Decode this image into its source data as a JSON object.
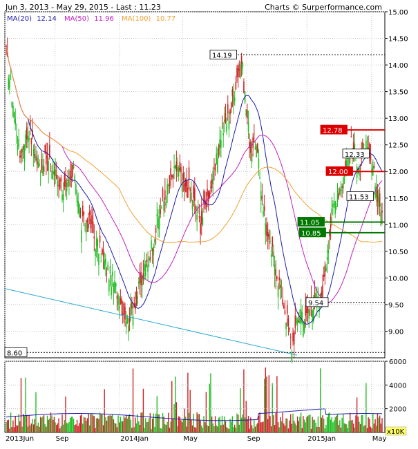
{
  "header": {
    "left": "Jun 3, 2013 - May 29, 2015 - Last : 11.23",
    "right": "Charts © Surperformance.com"
  },
  "legend": [
    {
      "label": "MA(20)",
      "value": "12.14",
      "color": "#1a1aa8"
    },
    {
      "label": "MA(50)",
      "value": "11.96",
      "color": "#c020c0"
    },
    {
      "label": "MA(100)",
      "value": "10.77",
      "color": "#f0a030"
    }
  ],
  "chart_data": {
    "type": "candlestick",
    "price_ylim": [
      8.5,
      15.0
    ],
    "price_ticks": [
      "15.00",
      "14.50",
      "14.00",
      "13.50",
      "13.00",
      "12.50",
      "12.00",
      "11.50",
      "11.00",
      "10.50",
      "10.00",
      "9.50",
      "9.00"
    ],
    "x_labels": [
      "2013Jun",
      "Sep",
      "2014Jan",
      "May",
      "Sep",
      "2015Jan",
      "May"
    ],
    "price_anchors": [
      [
        0,
        14.2
      ],
      [
        4,
        13.6
      ],
      [
        12,
        12.3
      ],
      [
        20,
        12.8
      ],
      [
        28,
        12.1
      ],
      [
        36,
        12.2
      ],
      [
        44,
        11.9
      ],
      [
        52,
        11.6
      ],
      [
        60,
        12.0
      ],
      [
        66,
        11.0
      ],
      [
        72,
        11.1
      ],
      [
        78,
        10.7
      ],
      [
        86,
        10.3
      ],
      [
        94,
        9.9
      ],
      [
        100,
        9.6
      ],
      [
        106,
        9.2
      ],
      [
        112,
        9.5
      ],
      [
        118,
        9.9
      ],
      [
        126,
        10.5
      ],
      [
        134,
        11.2
      ],
      [
        142,
        11.7
      ],
      [
        150,
        12.1
      ],
      [
        156,
        11.6
      ],
      [
        160,
        11.7
      ],
      [
        166,
        11.3
      ],
      [
        170,
        11.0
      ],
      [
        176,
        11.5
      ],
      [
        182,
        11.9
      ],
      [
        188,
        12.7
      ],
      [
        194,
        13.0
      ],
      [
        198,
        13.3
      ],
      [
        202,
        13.8
      ],
      [
        206,
        14.1
      ],
      [
        210,
        13.2
      ],
      [
        214,
        12.4
      ],
      [
        218,
        12.6
      ],
      [
        222,
        11.9
      ],
      [
        226,
        11.2
      ],
      [
        230,
        10.6
      ],
      [
        234,
        10.4
      ],
      [
        238,
        10.0
      ],
      [
        242,
        9.6
      ],
      [
        246,
        9.2
      ],
      [
        250,
        8.7
      ],
      [
        254,
        9.1
      ],
      [
        258,
        9.4
      ],
      [
        262,
        9.2
      ],
      [
        266,
        9.5
      ],
      [
        270,
        9.6
      ],
      [
        274,
        9.5
      ],
      [
        278,
        9.9
      ],
      [
        282,
        10.7
      ],
      [
        286,
        11.3
      ],
      [
        290,
        11.6
      ],
      [
        294,
        11.8
      ],
      [
        298,
        12.2
      ],
      [
        302,
        12.5
      ],
      [
        306,
        12.3
      ],
      [
        310,
        12.1
      ],
      [
        314,
        12.5
      ],
      [
        318,
        12.2
      ],
      [
        322,
        11.9
      ],
      [
        326,
        11.5
      ],
      [
        329,
        11.23
      ]
    ],
    "lines": [
      {
        "name": "14.19",
        "value": 14.19,
        "style": "dashed",
        "box": "white"
      },
      {
        "name": "12.78",
        "value": 12.78,
        "style": "solid",
        "color": "#dd0000",
        "box": "red"
      },
      {
        "name": "12.33",
        "value": 12.33,
        "style": "none",
        "box": "white"
      },
      {
        "name": "12.00",
        "value": 12.0,
        "style": "solid",
        "color": "#dd0000",
        "box": "red"
      },
      {
        "name": "11.53",
        "value": 11.53,
        "style": "none",
        "box": "white"
      },
      {
        "name": "11.05",
        "value": 11.05,
        "style": "solid",
        "color": "#007700",
        "box": "green"
      },
      {
        "name": "10.85",
        "value": 10.85,
        "style": "solid",
        "color": "#007700",
        "box": "green"
      },
      {
        "name": "9.54",
        "value": 9.54,
        "style": "dashed",
        "box": "white"
      },
      {
        "name": "8.60",
        "value": 8.6,
        "style": "dashed",
        "box": "white"
      }
    ],
    "trendline": {
      "color": "#2aa6d6",
      "from_price": 9.8,
      "to_price": 8.55
    },
    "volume_ylim": [
      0,
      6000
    ],
    "volume_ticks": [
      "6000",
      "4000",
      "2000"
    ],
    "volume_unit": "x10K"
  }
}
